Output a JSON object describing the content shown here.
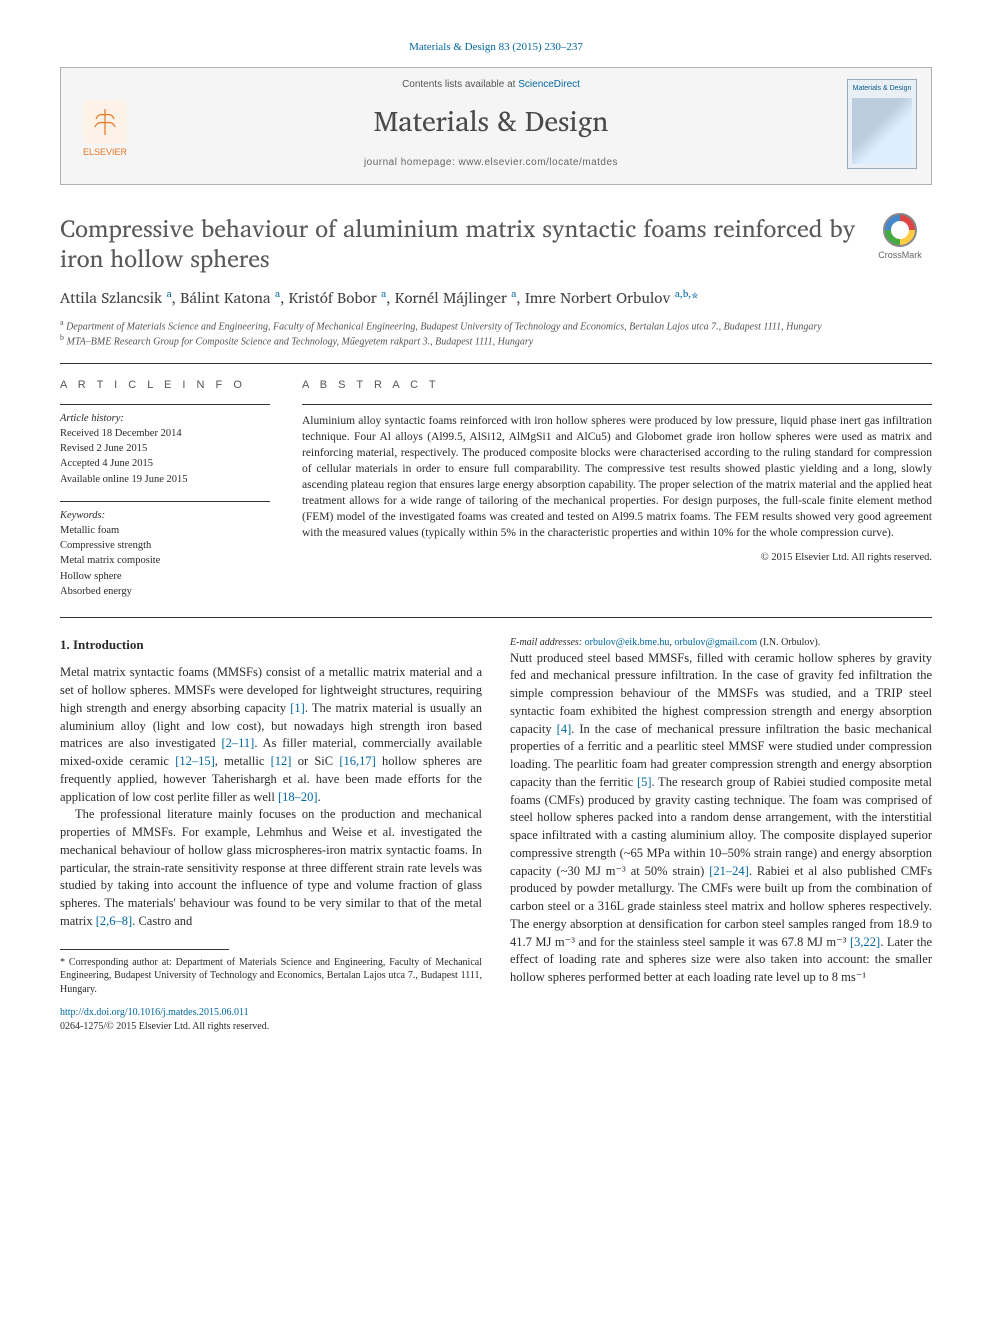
{
  "citation": "Materials & Design 83 (2015) 230–237",
  "header": {
    "contents_prefix": "Contents lists available at ",
    "contents_link": "ScienceDirect",
    "journal_name": "Materials & Design",
    "homepage_label": "journal homepage: www.elsevier.com/locate/matdes",
    "publisher": "ELSEVIER",
    "cover_title": "Materials & Design"
  },
  "crossmark_label": "CrossMark",
  "title": "Compressive behaviour of aluminium matrix syntactic foams reinforced by iron hollow spheres",
  "authors_html": "Attila Szlancsik <sup>a</sup>, Bálint Katona <sup>a</sup>, Kristóf Bobor <sup>a</sup>, Kornél Májlinger <sup>a</sup>, Imre Norbert Orbulov <sup>a,b,</sup><a>*</a>",
  "affiliations": {
    "a": "Department of Materials Science and Engineering, Faculty of Mechanical Engineering, Budapest University of Technology and Economics, Bertalan Lajos utca 7., Budapest 1111, Hungary",
    "b": "MTA–BME Research Group for Composite Science and Technology, Műegyetem rakpart 3., Budapest 1111, Hungary"
  },
  "info": {
    "section_label": "A R T I C L E   I N F O",
    "history_label": "Article history:",
    "history": [
      "Received 18 December 2014",
      "Revised 2 June 2015",
      "Accepted 4 June 2015",
      "Available online 19 June 2015"
    ],
    "keywords_label": "Keywords:",
    "keywords": [
      "Metallic foam",
      "Compressive strength",
      "Metal matrix composite",
      "Hollow sphere",
      "Absorbed energy"
    ]
  },
  "abstract": {
    "section_label": "A B S T R A C T",
    "body": "Aluminium alloy syntactic foams reinforced with iron hollow spheres were produced by low pressure, liquid phase inert gas infiltration technique. Four Al alloys (Al99.5, AlSi12, AlMgSi1 and AlCu5) and Globomet grade iron hollow spheres were used as matrix and reinforcing material, respectively. The produced composite blocks were characterised according to the ruling standard for compression of cellular materials in order to ensure full comparability. The compressive test results showed plastic yielding and a long, slowly ascending plateau region that ensures large energy absorption capability. The proper selection of the matrix material and the applied heat treatment allows for a wide range of tailoring of the mechanical properties. For design purposes, the full-scale finite element method (FEM) model of the investigated foams was created and tested on Al99.5 matrix foams. The FEM results showed very good agreement with the measured values (typically within 5% in the characteristic properties and within 10% for the whole compression curve).",
    "copyright": "© 2015 Elsevier Ltd. All rights reserved."
  },
  "intro": {
    "heading": "1. Introduction",
    "p1": "Metal matrix syntactic foams (MMSFs) consist of a metallic matrix material and a set of hollow spheres. MMSFs were developed for lightweight structures, requiring high strength and energy absorbing capacity [1]. The matrix material is usually an aluminium alloy (light and low cost), but nowadays high strength iron based matrices are also investigated [2–11]. As filler material, commercially available mixed-oxide ceramic [12–15], metallic [12] or SiC [16,17] hollow spheres are frequently applied, however Taherishargh et al. have been made efforts for the application of low cost perlite filler as well [18–20].",
    "p2": "The professional literature mainly focuses on the production and mechanical properties of MMSFs. For example, Lehmhus and Weise et al. investigated the mechanical behaviour of hollow glass microspheres-iron matrix syntactic foams. In particular, the strain-rate sensitivity response at three different strain rate levels was studied by taking into account the influence of type and volume fraction of glass spheres. The materials' behaviour was found to be very similar to that of the metal matrix [2,6–8]. Castro and",
    "p3": "Nutt produced steel based MMSFs, filled with ceramic hollow spheres by gravity fed and mechanical pressure infiltration. In the case of gravity fed infiltration the simple compression behaviour of the MMSFs was studied, and a TRIP steel syntactic foam exhibited the highest compression strength and energy absorption capacity [4]. In the case of mechanical pressure infiltration the basic mechanical properties of a ferritic and a pearlitic steel MMSF were studied under compression loading. The pearlitic foam had greater compression strength and energy absorption capacity than the ferritic [5]. The research group of Rabiei studied composite metal foams (CMFs) produced by gravity casting technique. The foam was comprised of steel hollow spheres packed into a random dense arrangement, with the interstitial space infiltrated with a casting aluminium alloy. The composite displayed superior compressive strength (~65 MPa within 10–50% strain range) and energy absorption capacity (~30 MJ m⁻³ at 50% strain) [21–24]. Rabiei et al also published CMFs produced by powder metallurgy. The CMFs were built up from the combination of carbon steel or a 316L grade stainless steel matrix and hollow spheres respectively. The energy absorption at densification for carbon steel samples ranged from 18.9 to 41.7 MJ m⁻³ and for the stainless steel sample it was 67.8 MJ m⁻³ [3,22]. Later the effect of loading rate and spheres size were also taken into account: the smaller hollow spheres performed better at each loading rate level up to 8 ms⁻¹"
  },
  "footnote": {
    "corresponding": "* Corresponding author at: Department of Materials Science and Engineering, Faculty of Mechanical Engineering, Budapest University of Technology and Economics, Bertalan Lajos utca 7., Budapest 1111, Hungary.",
    "email_label": "E-mail addresses: ",
    "email1": "orbulov@eik.bme.hu",
    "email2": "orbulov@gmail.com",
    "email_suffix": " (I.N. Orbulov)."
  },
  "doi": {
    "url": "http://dx.doi.org/10.1016/j.matdes.2015.06.011",
    "issn": "0264-1275/© 2015 Elsevier Ltd. All rights reserved."
  },
  "colors": {
    "link": "#0066a0",
    "elsevier_orange": "#e87722",
    "text": "#2a2a2a",
    "rule": "#333333",
    "header_bg": "#f5f5f5"
  }
}
